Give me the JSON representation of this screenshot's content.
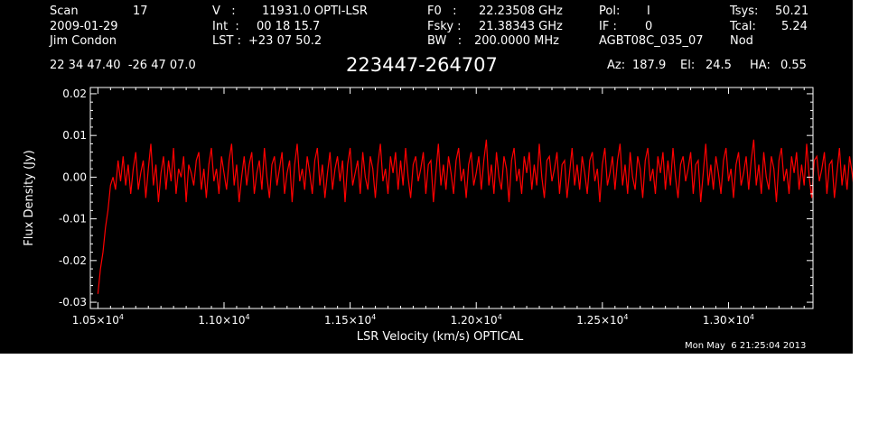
{
  "header": {
    "scan_label": "Scan",
    "scan_value": "17",
    "date": "2009-01-29",
    "observer": "Jim Condon",
    "v_label": "V   :",
    "v_value": "11931.0 OPTI-LSR",
    "int_label": "Int  :",
    "int_value": "00 18 15.7",
    "lst_label": "LST :",
    "lst_value": "+23 07 50.2",
    "f0_label": "F0   :",
    "f0_value": "22.23508 GHz",
    "fsky_label": "Fsky :",
    "fsky_value": "21.38343 GHz",
    "bw_label": "BW   :",
    "bw_value": "200.0000 MHz",
    "pol_label": "Pol:",
    "pol_value": "I",
    "if_label": "IF :",
    "if_value": "0",
    "project": "AGBT08C_035_07",
    "tsys_label": "Tsys:",
    "tsys_value": "50.21",
    "tcal_label": "Tcal:",
    "tcal_value": "5.24",
    "mode": "Nod",
    "coords": "22 34 47.40  -26 47 07.0",
    "source": "223447-264707",
    "az_label": "Az:",
    "az_value": "187.9",
    "el_label": "El:",
    "el_value": "24.5",
    "ha_label": "HA:",
    "ha_value": "0.55",
    "timestamp": "Mon May  6 21:25:04 2013"
  },
  "colors": {
    "background": "#000000",
    "foreground": "#ffffff",
    "trace": "#ff0000"
  },
  "chart_data": {
    "type": "line",
    "xlabel": "LSR Velocity (km/s) OPTICAL",
    "ylabel": "Flux Density (Jy)",
    "xlim": [
      10470,
      13335
    ],
    "ylim": [
      -0.0315,
      0.0215
    ],
    "x_ticks": [
      10500,
      11000,
      11500,
      12000,
      12500,
      13000
    ],
    "x_tick_labels": [
      {
        "mantissa": "1.05×10",
        "exp": "4"
      },
      {
        "mantissa": "1.10×10",
        "exp": "4"
      },
      {
        "mantissa": "1.15×10",
        "exp": "4"
      },
      {
        "mantissa": "1.20×10",
        "exp": "4"
      },
      {
        "mantissa": "1.25×10",
        "exp": "4"
      },
      {
        "mantissa": "1.30×10",
        "exp": "4"
      }
    ],
    "y_ticks": [
      -0.03,
      -0.02,
      -0.01,
      0.0,
      0.01,
      0.02
    ],
    "y_tick_labels": [
      "-0.03",
      "-0.02",
      "-0.01",
      "0.00",
      "0.01",
      "0.02"
    ],
    "series": [
      {
        "x_start": 10500,
        "x_step": 10,
        "values": [
          -0.028,
          -0.022,
          -0.018,
          -0.012,
          -0.008,
          -0.002,
          0.0,
          -0.003,
          0.004,
          -0.001,
          0.005,
          -0.002,
          0.003,
          -0.004,
          0.002,
          0.006,
          -0.003,
          0.001,
          0.004,
          -0.005,
          0.002,
          0.008,
          -0.002,
          0.003,
          -0.006,
          0.001,
          0.005,
          -0.003,
          0.004,
          -0.001,
          0.007,
          -0.004,
          0.002,
          0.0,
          0.005,
          -0.006,
          0.003,
          0.001,
          -0.002,
          0.004,
          0.006,
          -0.003,
          0.002,
          -0.005,
          0.003,
          0.007,
          -0.001,
          0.002,
          -0.004,
          0.005,
          0.001,
          -0.003,
          0.004,
          0.008,
          -0.002,
          0.003,
          -0.006,
          0.0,
          0.005,
          -0.002,
          0.003,
          0.006,
          -0.004,
          0.001,
          0.004,
          -0.003,
          0.007,
          0.0,
          -0.005,
          0.003,
          0.005,
          -0.002,
          0.002,
          0.006,
          -0.004,
          0.001,
          0.004,
          -0.006,
          0.003,
          0.008,
          -0.001,
          0.002,
          -0.003,
          0.005,
          0.001,
          -0.004,
          0.004,
          0.007,
          -0.002,
          0.003,
          -0.005,
          0.001,
          0.006,
          -0.003,
          0.002,
          0.005,
          -0.001,
          0.004,
          -0.006,
          0.003,
          0.007,
          -0.002,
          0.001,
          0.004,
          -0.004,
          0.006,
          0.0,
          -0.003,
          0.005,
          0.002,
          -0.005,
          0.003,
          0.008,
          -0.001,
          0.002,
          -0.004,
          0.005,
          0.001,
          0.006,
          -0.003,
          0.004,
          -0.002,
          0.007,
          0.0,
          -0.005,
          0.003,
          0.005,
          -0.001,
          0.002,
          0.006,
          -0.004,
          0.003,
          0.004,
          -0.006,
          0.001,
          0.008,
          -0.002,
          0.003,
          -0.003,
          0.005,
          0.001,
          -0.004,
          0.004,
          0.007,
          -0.001,
          0.002,
          -0.005,
          0.003,
          0.006,
          -0.002,
          0.001,
          0.005,
          -0.003,
          0.004,
          0.009,
          -0.002,
          0.003,
          -0.004,
          0.006,
          0.0,
          -0.003,
          0.005,
          0.002,
          -0.006,
          0.004,
          0.007,
          -0.001,
          0.002,
          -0.004,
          0.005,
          0.001,
          0.006,
          -0.003,
          0.003,
          -0.002,
          0.008,
          0.0,
          -0.005,
          0.004,
          0.005,
          -0.001,
          0.002,
          0.006,
          -0.004,
          0.003,
          0.004,
          -0.005,
          0.001,
          0.007,
          -0.002,
          0.003,
          -0.003,
          0.005,
          0.001,
          -0.004,
          0.004,
          0.006,
          -0.001,
          0.002,
          -0.006,
          0.003,
          0.007,
          -0.002,
          0.001,
          0.005,
          -0.003,
          0.004,
          0.008,
          -0.002,
          0.003,
          -0.004,
          0.006,
          0.0,
          -0.003,
          0.005,
          0.002,
          -0.005,
          0.004,
          0.007,
          -0.001,
          0.002,
          -0.004,
          0.005,
          0.001,
          0.006,
          -0.003,
          0.004,
          -0.002,
          0.007,
          0.0,
          -0.005,
          0.003,
          0.005,
          -0.001,
          0.002,
          0.006,
          -0.004,
          0.003,
          0.004,
          -0.006,
          0.001,
          0.008,
          -0.002,
          0.003,
          -0.003,
          0.005,
          0.001,
          -0.004,
          0.004,
          0.007,
          -0.001,
          0.002,
          -0.005,
          0.003,
          0.006,
          -0.002,
          0.001,
          0.005,
          -0.003,
          0.004,
          0.009,
          -0.002,
          0.003,
          -0.004,
          0.006,
          0.0,
          -0.003,
          0.005,
          0.002,
          -0.006,
          0.004,
          0.007,
          -0.001,
          0.002,
          -0.004,
          0.005,
          0.001,
          0.006,
          -0.003,
          0.003,
          -0.002,
          0.008,
          0.0,
          -0.005,
          0.004,
          0.005,
          -0.001,
          0.002,
          0.006,
          -0.004,
          0.003,
          0.004,
          -0.005,
          0.001,
          0.007,
          -0.002,
          0.003,
          -0.003,
          0.005,
          0.001,
          -0.004,
          0.004,
          0.006,
          -0.001,
          0.002,
          -0.006,
          0.003,
          0.007,
          -0.002,
          0.001,
          0.005,
          -0.003,
          0.004,
          0.008,
          -0.002,
          0.003,
          -0.004,
          0.006,
          0.0,
          -0.003,
          0.005,
          0.002,
          -0.005,
          0.004,
          0.007,
          -0.001,
          0.002,
          -0.004,
          0.005,
          0.001,
          0.006,
          -0.003,
          0.004,
          -0.002,
          0.007,
          0.0,
          -0.005,
          0.003,
          0.005,
          -0.001,
          0.002,
          0.006,
          0.012,
          0.014
        ]
      }
    ],
    "grid": false
  }
}
